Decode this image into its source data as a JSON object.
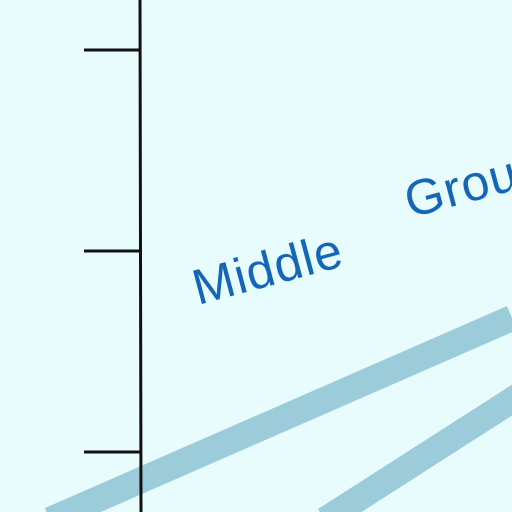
{
  "map": {
    "background_color": "#e8fbfd",
    "axis_color": "#111111",
    "road_color": "#9ccbd9",
    "label_color": "#1466b8",
    "labels": {
      "middle": "Middle",
      "group": "Grou"
    }
  }
}
